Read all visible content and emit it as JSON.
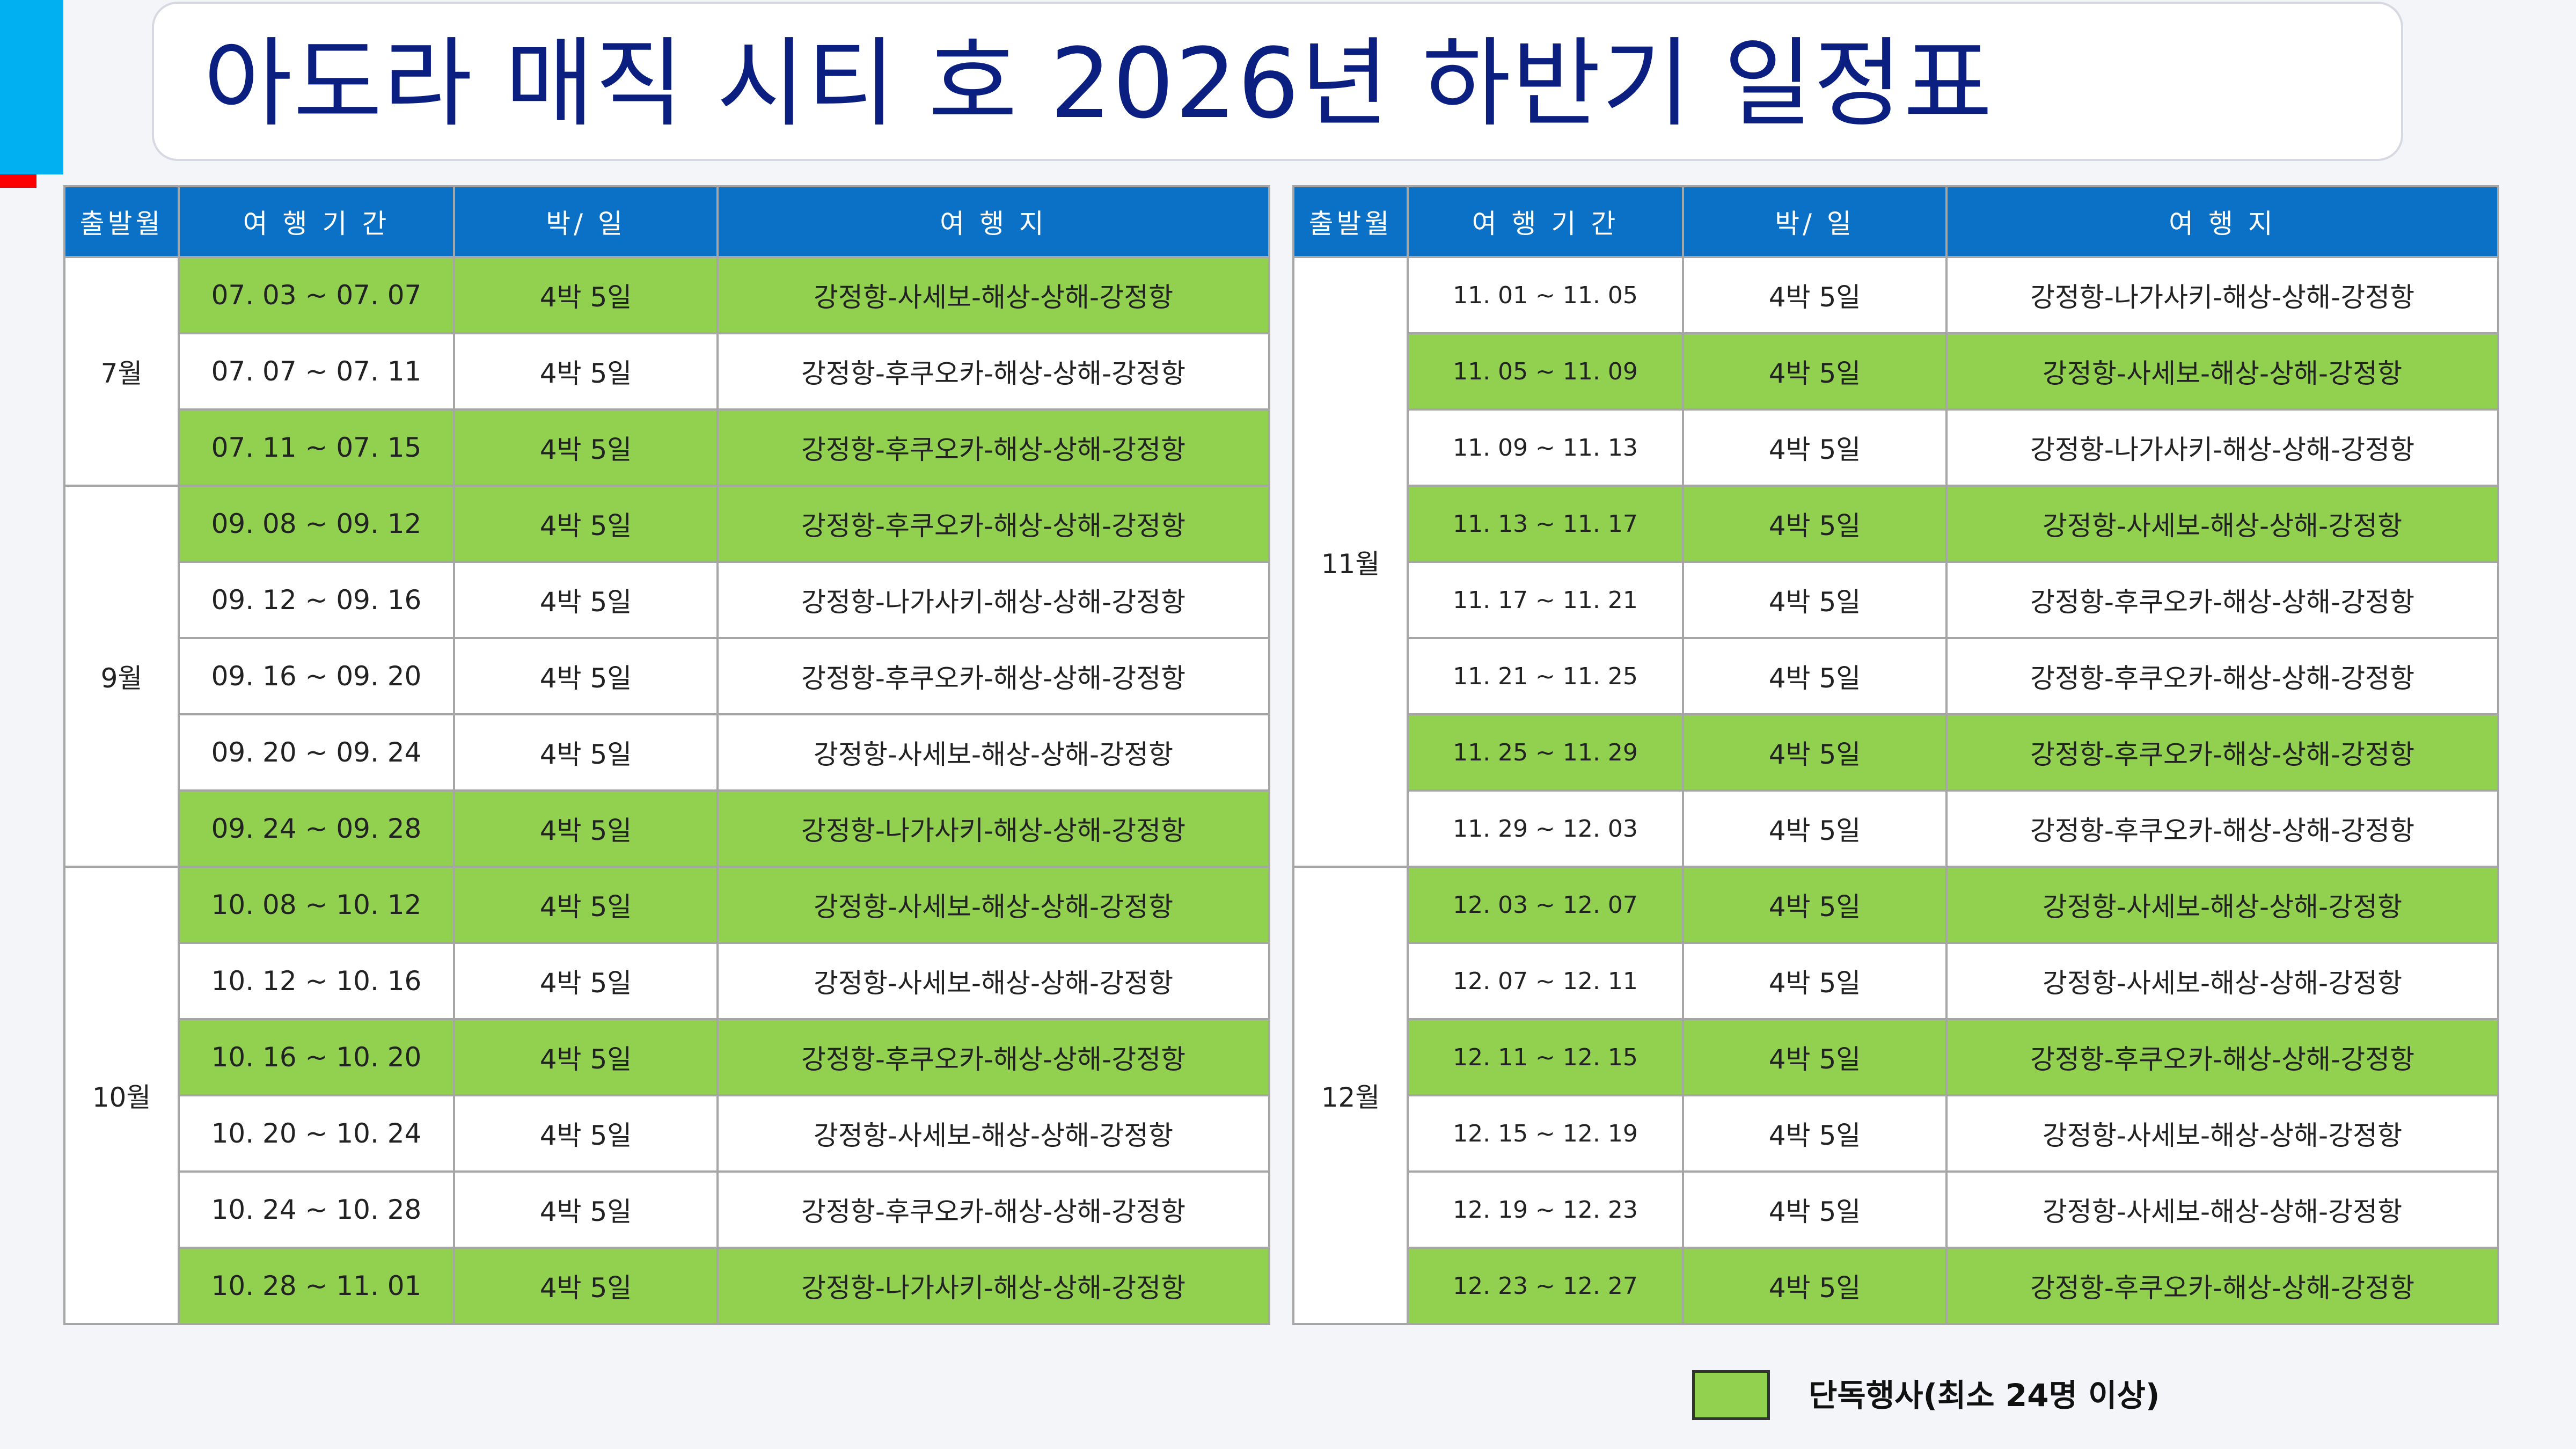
{
  "title": "아도라 매직 시티 호 2026년 하반기 일정표",
  "colors": {
    "header_bg": "#0b71c7",
    "solo_green": "#92d050",
    "title_text": "#0a1f80",
    "accent_red": "#ff0000",
    "accent_blue": "#00b0f0"
  },
  "headers": {
    "month": "출발월",
    "period": "여 행 기 간",
    "nights": "박/ 일",
    "itinerary": "여   행   지"
  },
  "left": [
    {
      "month": "7월",
      "rows": [
        {
          "period": "07. 03 ~ 07. 07",
          "nights": "4박 5일",
          "route": "강정항-사세보-해상-상해-강정항",
          "solo": true
        },
        {
          "period": "07. 07 ~ 07. 11",
          "nights": "4박 5일",
          "route": "강정항-후쿠오카-해상-상해-강정항",
          "solo": false
        },
        {
          "period": "07. 11 ~ 07. 15",
          "nights": "4박 5일",
          "route": "강정항-후쿠오카-해상-상해-강정항",
          "solo": true
        }
      ]
    },
    {
      "month": "9월",
      "rows": [
        {
          "period": "09. 08 ~ 09. 12",
          "nights": "4박 5일",
          "route": "강정항-후쿠오카-해상-상해-강정항",
          "solo": true
        },
        {
          "period": "09. 12 ~ 09. 16",
          "nights": "4박 5일",
          "route": "강정항-나가사키-해상-상해-강정항",
          "solo": false
        },
        {
          "period": "09. 16 ~ 09. 20",
          "nights": "4박 5일",
          "route": "강정항-후쿠오카-해상-상해-강정항",
          "solo": false
        },
        {
          "period": "09. 20 ~ 09. 24",
          "nights": "4박 5일",
          "route": "강정항-사세보-해상-상해-강정항",
          "solo": false
        },
        {
          "period": "09. 24 ~ 09. 28",
          "nights": "4박 5일",
          "route": "강정항-나가사키-해상-상해-강정항",
          "solo": true
        }
      ]
    },
    {
      "month": "10월",
      "rows": [
        {
          "period": "10. 08 ~ 10. 12",
          "nights": "4박 5일",
          "route": "강정항-사세보-해상-상해-강정항",
          "solo": true
        },
        {
          "period": "10. 12 ~ 10. 16",
          "nights": "4박 5일",
          "route": "강정항-사세보-해상-상해-강정항",
          "solo": false
        },
        {
          "period": "10. 16 ~ 10. 20",
          "nights": "4박 5일",
          "route": "강정항-후쿠오카-해상-상해-강정항",
          "solo": true
        },
        {
          "period": "10. 20 ~ 10. 24",
          "nights": "4박 5일",
          "route": "강정항-사세보-해상-상해-강정항",
          "solo": false
        },
        {
          "period": "10. 24 ~ 10. 28",
          "nights": "4박 5일",
          "route": "강정항-후쿠오카-해상-상해-강정항",
          "solo": false
        },
        {
          "period": "10. 28 ~ 11. 01",
          "nights": "4박 5일",
          "route": "강정항-나가사키-해상-상해-강정항",
          "solo": true
        }
      ]
    }
  ],
  "right": [
    {
      "month": "11월",
      "rows": [
        {
          "period": "11. 01 ~ 11. 05",
          "nights": "4박 5일",
          "route": "강정항-나가사키-해상-상해-강정항",
          "solo": false
        },
        {
          "period": "11. 05 ~ 11. 09",
          "nights": "4박 5일",
          "route": "강정항-사세보-해상-상해-강정항",
          "solo": true
        },
        {
          "period": "11. 09 ~ 11. 13",
          "nights": "4박 5일",
          "route": "강정항-나가사키-해상-상해-강정항",
          "solo": false
        },
        {
          "period": "11. 13 ~ 11. 17",
          "nights": "4박 5일",
          "route": "강정항-사세보-해상-상해-강정항",
          "solo": true
        },
        {
          "period": "11. 17 ~ 11. 21",
          "nights": "4박 5일",
          "route": "강정항-후쿠오카-해상-상해-강정항",
          "solo": false
        },
        {
          "period": "11. 21 ~ 11. 25",
          "nights": "4박 5일",
          "route": "강정항-후쿠오카-해상-상해-강정항",
          "solo": false
        },
        {
          "period": "11. 25 ~ 11. 29",
          "nights": "4박 5일",
          "route": "강정항-후쿠오카-해상-상해-강정항",
          "solo": true
        },
        {
          "period": "11. 29 ~ 12. 03",
          "nights": "4박 5일",
          "route": "강정항-후쿠오카-해상-상해-강정항",
          "solo": false
        }
      ]
    },
    {
      "month": "12월",
      "rows": [
        {
          "period": "12. 03 ~ 12. 07",
          "nights": "4박 5일",
          "route": "강정항-사세보-해상-상해-강정항",
          "solo": true
        },
        {
          "period": "12. 07 ~ 12. 11",
          "nights": "4박 5일",
          "route": "강정항-사세보-해상-상해-강정항",
          "solo": false
        },
        {
          "period": "12. 11 ~ 12. 15",
          "nights": "4박 5일",
          "route": "강정항-후쿠오카-해상-상해-강정항",
          "solo": true
        },
        {
          "period": "12. 15 ~ 12. 19",
          "nights": "4박 5일",
          "route": "강정항-사세보-해상-상해-강정항",
          "solo": false
        },
        {
          "period": "12. 19 ~ 12. 23",
          "nights": "4박 5일",
          "route": "강정항-사세보-해상-상해-강정항",
          "solo": false
        },
        {
          "period": "12. 23 ~ 12. 27",
          "nights": "4박 5일",
          "route": "강정항-후쿠오카-해상-상해-강정항",
          "solo": true
        }
      ]
    }
  ],
  "legend": {
    "label": "단독행사(최소 24명 이상)"
  }
}
